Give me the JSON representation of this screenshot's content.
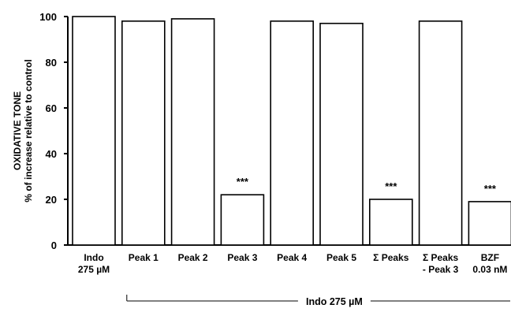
{
  "chart_data": {
    "type": "bar",
    "title": "",
    "ylabel_lines": [
      "OXIDATIVE TONE",
      "% of increase relative to control"
    ],
    "xlabel": "",
    "ylim": [
      0,
      100
    ],
    "yticks": [
      0,
      20,
      40,
      60,
      80,
      100
    ],
    "grid": false,
    "categories": [
      {
        "lines": [
          "Indo",
          "275 µM"
        ]
      },
      {
        "lines": [
          "Peak 1"
        ]
      },
      {
        "lines": [
          "Peak 2"
        ]
      },
      {
        "lines": [
          "Peak 3"
        ]
      },
      {
        "lines": [
          "Peak 4"
        ]
      },
      {
        "lines": [
          "Peak 5"
        ]
      },
      {
        "lines": [
          "Σ Peaks"
        ]
      },
      {
        "lines": [
          "Σ Peaks",
          "- Peak 3"
        ]
      },
      {
        "lines": [
          "BZF",
          "0.03 nM"
        ]
      }
    ],
    "values": [
      100,
      98,
      99,
      22,
      98,
      97,
      20,
      98,
      19
    ],
    "annotations": [
      "",
      "",
      "",
      "***",
      "",
      "",
      "***",
      "",
      "***"
    ],
    "group_bracket": {
      "label": "Indo 275 µM",
      "from_category": 1,
      "to_category": 8
    },
    "colors": {
      "bar_fill": "#ffffff",
      "bar_stroke": "#000000",
      "axis": "#000000"
    }
  }
}
